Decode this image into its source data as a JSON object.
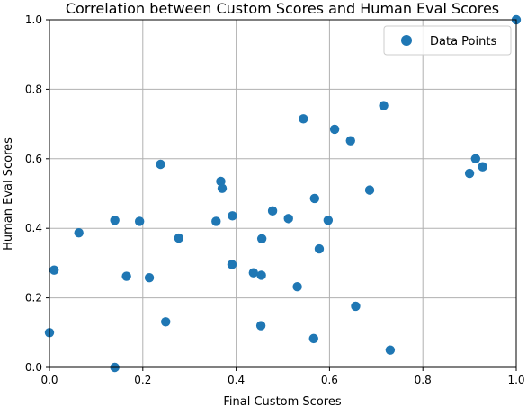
{
  "chart_data": {
    "type": "scatter",
    "title": "Correlation between Custom Scores and Human Eval Scores",
    "xlabel": "Final Custom Scores",
    "ylabel": "Human Eval Scores",
    "xlim": [
      0,
      1
    ],
    "ylim": [
      0,
      1
    ],
    "xticks": [
      "0.0",
      "0.2",
      "0.4",
      "0.6",
      "0.8",
      "1.0"
    ],
    "yticks": [
      "0.0",
      "0.2",
      "0.4",
      "0.6",
      "0.8",
      "1.0"
    ],
    "grid": true,
    "legend_position": "top-right",
    "color": "#1f77b4",
    "series": [
      {
        "name": "Data Points",
        "points": [
          [
            1.0,
            1.0
          ],
          [
            0.0,
            0.1
          ],
          [
            0.01,
            0.28
          ],
          [
            0.063,
            0.387
          ],
          [
            0.14,
            0.423
          ],
          [
            0.14,
            0.0
          ],
          [
            0.165,
            0.262
          ],
          [
            0.193,
            0.42
          ],
          [
            0.214,
            0.258
          ],
          [
            0.238,
            0.584
          ],
          [
            0.249,
            0.131
          ],
          [
            0.277,
            0.372
          ],
          [
            0.357,
            0.42
          ],
          [
            0.367,
            0.535
          ],
          [
            0.37,
            0.515
          ],
          [
            0.391,
            0.296
          ],
          [
            0.392,
            0.436
          ],
          [
            0.437,
            0.272
          ],
          [
            0.453,
            0.12
          ],
          [
            0.454,
            0.265
          ],
          [
            0.455,
            0.37
          ],
          [
            0.478,
            0.45
          ],
          [
            0.512,
            0.428
          ],
          [
            0.531,
            0.232
          ],
          [
            0.544,
            0.715
          ],
          [
            0.566,
            0.083
          ],
          [
            0.568,
            0.486
          ],
          [
            0.578,
            0.341
          ],
          [
            0.597,
            0.423
          ],
          [
            0.611,
            0.685
          ],
          [
            0.645,
            0.652
          ],
          [
            0.656,
            0.176
          ],
          [
            0.686,
            0.51
          ],
          [
            0.716,
            0.753
          ],
          [
            0.73,
            0.05
          ],
          [
            0.9,
            0.558
          ],
          [
            0.913,
            0.6
          ],
          [
            0.928,
            0.577
          ]
        ]
      }
    ]
  }
}
